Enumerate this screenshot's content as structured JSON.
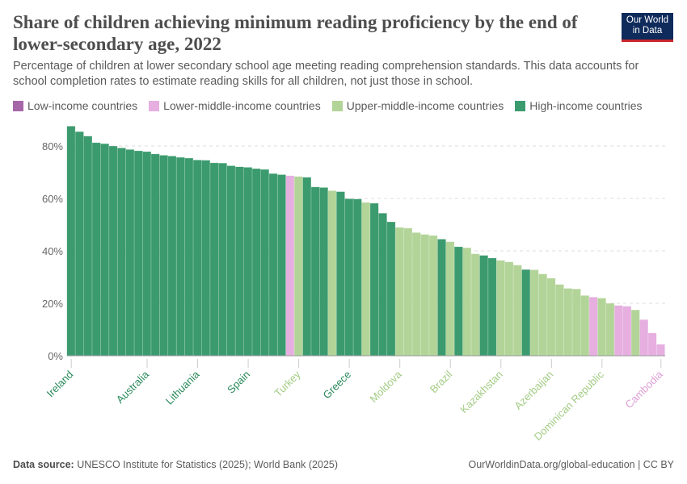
{
  "header": {
    "title": "Share of children achieving minimum reading proficiency by the end of lower-secondary age, 2022",
    "subtitle": "Percentage of children at lower secondary school age meeting reading comprehension standards. This data accounts for school completion rates to estimate reading skills for all children, not just those in school.",
    "logo_text": "Our World in Data"
  },
  "footer": {
    "source_label": "Data source:",
    "source": "UNESCO Institute for Statistics (2025); World Bank (2025)",
    "link": "OurWorldinData.org/global-education | CC BY"
  },
  "chart_data": {
    "type": "bar",
    "ylim": [
      0,
      88
    ],
    "yticks": [
      0,
      20,
      40,
      60,
      80
    ],
    "ytick_labels": [
      "0%",
      "20%",
      "40%",
      "60%",
      "80%"
    ],
    "grid": true,
    "legend_placement": "top",
    "legend": [
      {
        "name": "Low-income countries",
        "color": "#a667a9"
      },
      {
        "name": "Lower-middle-income countries",
        "color": "#e6afe0"
      },
      {
        "name": "Upper-middle-income countries",
        "color": "#b2d498"
      },
      {
        "name": "High-income countries",
        "color": "#3b9b6e"
      }
    ],
    "label_colors": {
      "High-income countries": "#2a8a5a",
      "Upper-middle-income countries": "#a3cc85",
      "Lower-middle-income countries": "#dc9fd6"
    },
    "values": [
      87.5,
      85.4,
      83.7,
      81.2,
      80.8,
      79.9,
      79.2,
      78.6,
      78.1,
      77.8,
      76.9,
      76.4,
      76.1,
      75.6,
      75.3,
      74.6,
      74.5,
      73.5,
      73.4,
      72.4,
      72.0,
      71.8,
      71.3,
      71.0,
      69.4,
      69.0,
      68.6,
      68.3,
      68.0,
      64.3,
      64.1,
      62.9,
      62.5,
      59.8,
      59.7,
      58.4,
      58.1,
      54.3,
      51.0,
      48.9,
      48.6,
      46.9,
      46.2,
      45.8,
      44.4,
      43.4,
      41.5,
      41.1,
      38.8,
      38.2,
      37.2,
      36.3,
      35.7,
      34.5,
      32.8,
      32.7,
      31.1,
      29.5,
      27.1,
      25.6,
      25.4,
      22.9,
      22.3,
      21.9,
      19.9,
      19.1,
      18.8,
      17.4,
      13.7,
      8.6,
      4.3
    ],
    "groups": "HHHHHHHHHHHHHHHHHHHHHHHHHHLUHHHUHHHUHHHUUUUUHUHUUHHUUUHUUUUUUULUULLULLL",
    "group_key": {
      "H": "High-income countries",
      "U": "Upper-middle-income countries",
      "L": "Lower-middle-income countries"
    },
    "labeled_bars": [
      {
        "index": 0,
        "label": "Ireland"
      },
      {
        "index": 9,
        "label": "Australia"
      },
      {
        "index": 15,
        "label": "Lithuania"
      },
      {
        "index": 21,
        "label": "Spain"
      },
      {
        "index": 27,
        "label": "Turkey"
      },
      {
        "index": 33,
        "label": "Greece"
      },
      {
        "index": 39,
        "label": "Moldova"
      },
      {
        "index": 45,
        "label": "Brazil"
      },
      {
        "index": 51,
        "label": "Kazakhstan"
      },
      {
        "index": 57,
        "label": "Azerbaijan"
      },
      {
        "index": 63,
        "label": "Dominican Republic"
      },
      {
        "index": 70,
        "label": "Cambodia"
      }
    ]
  }
}
